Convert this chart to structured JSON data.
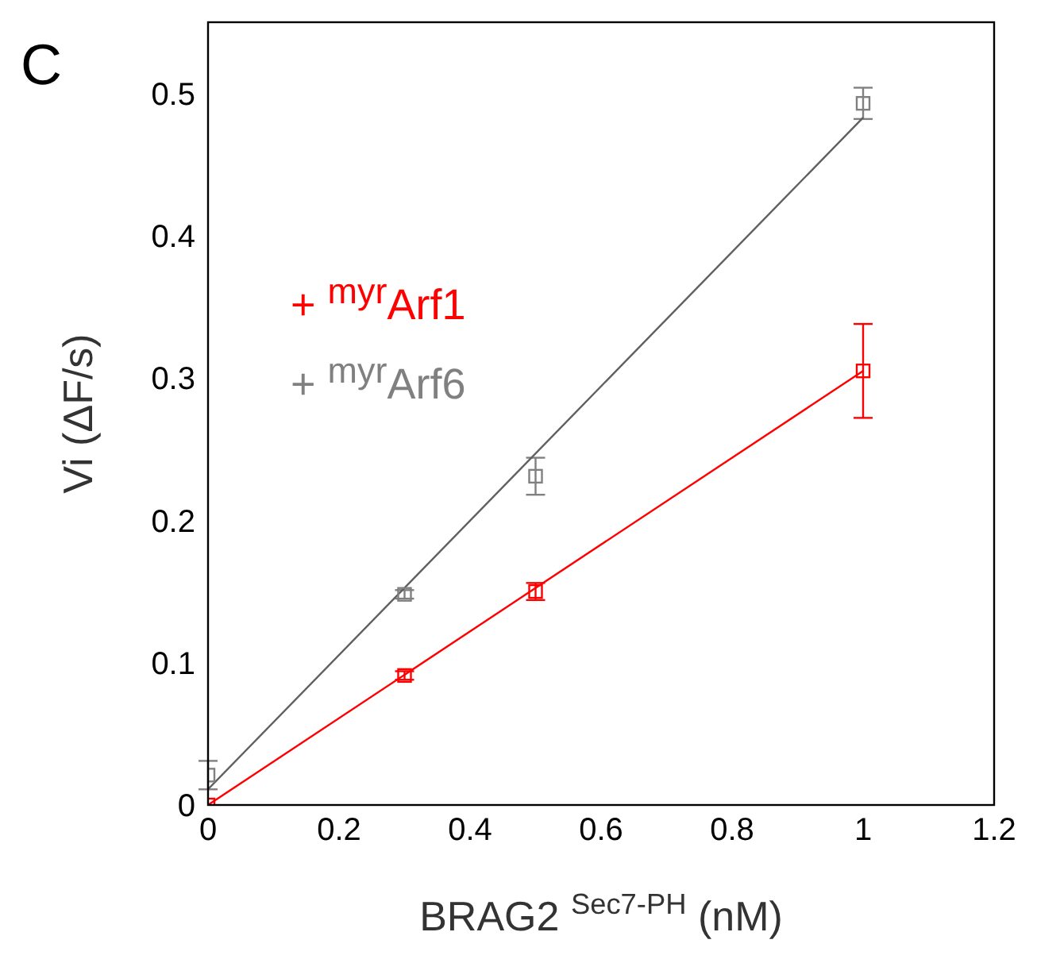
{
  "chart_data": {
    "type": "scatter",
    "xlabel": "BRAG2 $^{Sec7-PH}$ (nM)",
    "ylabel": "Vi (ΔF/s)",
    "annotations": [
      "C"
    ],
    "xlim": [
      0,
      1.2
    ],
    "xticks": [
      0,
      0.2,
      0.4,
      0.6,
      0.8,
      1,
      1.2
    ],
    "ylim": [
      0,
      0.55
    ],
    "yticks": [
      0,
      0.1,
      0.2,
      0.3,
      0.4,
      0.5
    ],
    "legend": "top left",
    "marker": "square",
    "series": [
      {
        "name": "+ $^{myr}$Arf1",
        "color": "#ff0000",
        "x": [
          0,
          0.3,
          0.5,
          1
        ],
        "values": [
          0,
          0.091,
          0.15,
          0.305
        ],
        "errors": [
          null,
          0.003,
          0.006,
          0.033
        ]
      },
      {
        "name": "+ $^{myr}$Arf6",
        "color": "#808080",
        "x": [
          0,
          0.3,
          0.5,
          1
        ],
        "values": [
          0.021,
          0.148,
          0.231,
          0.493
        ],
        "errors": [
          0.01,
          0.003,
          0.013,
          0.011
        ]
      },
      {
        "type": "line",
        "color": "#ff0000",
        "x": [
          0,
          1
        ],
        "values": [
          0,
          0.305
        ],
        "marker": "none"
      },
      {
        "type": "line",
        "color": "#606060",
        "x": [
          0,
          1
        ],
        "values": [
          0.011,
          0.483
        ],
        "marker": "none"
      }
    ]
  }
}
